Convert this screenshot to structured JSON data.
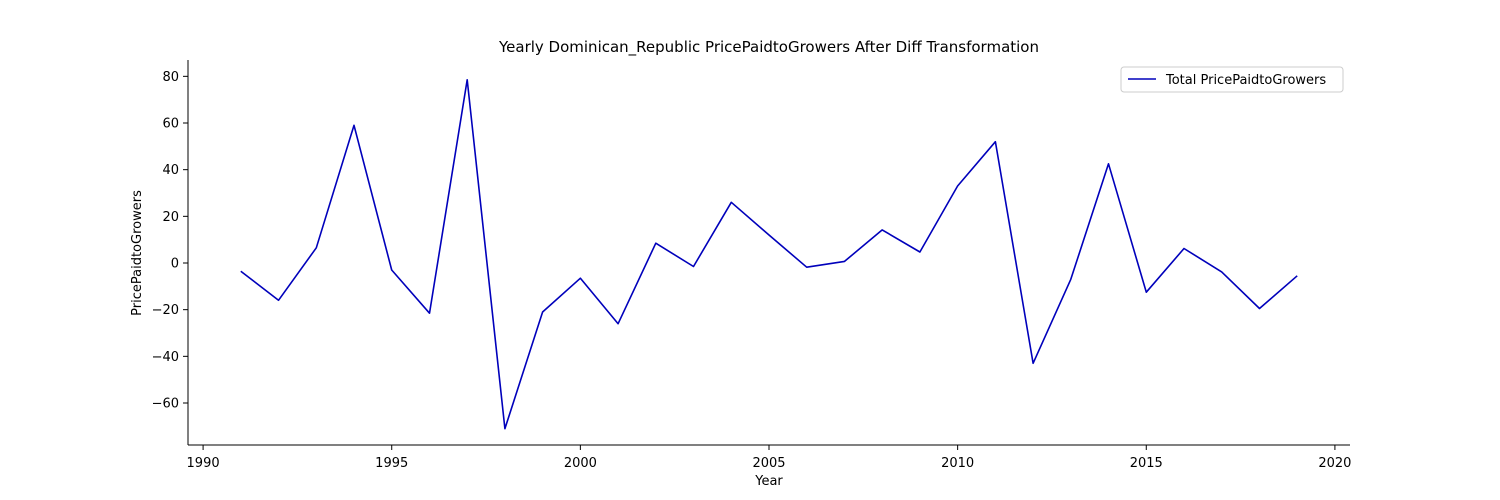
{
  "chart_data": {
    "type": "line",
    "title": "Yearly Dominican_Republic PricePaidtoGrowers After Diff Transformation",
    "xlabel": "Year",
    "ylabel": "PricePaidtoGrowers",
    "xlim": [
      1989.6,
      2020.4
    ],
    "ylim": [
      -78,
      87
    ],
    "x_ticks": [
      1990,
      1995,
      2000,
      2005,
      2010,
      2015,
      2020
    ],
    "y_ticks": [
      -60,
      -40,
      -20,
      0,
      20,
      40,
      60,
      80
    ],
    "x_tick_labels": [
      "1990",
      "1995",
      "2000",
      "2005",
      "2010",
      "2015",
      "2020"
    ],
    "y_tick_labels": [
      "−60",
      "−40",
      "−20",
      "0",
      "20",
      "40",
      "60",
      "80"
    ],
    "grid": false,
    "legend_position": "top-right",
    "series": [
      {
        "name": "Total PricePaidtoGrowers",
        "color": "#0000bb",
        "x": [
          1991,
          1992,
          1993,
          1994,
          1995,
          1996,
          1997,
          1998,
          1999,
          2000,
          2001,
          2002,
          2003,
          2004,
          2005,
          2006,
          2007,
          2008,
          2009,
          2010,
          2011,
          2012,
          2013,
          2014,
          2015,
          2016,
          2017,
          2018,
          2019
        ],
        "y": [
          -3.5,
          -16,
          6.5,
          59,
          -3,
          -21.5,
          78.5,
          -71,
          -21,
          -6.5,
          -26,
          8.5,
          -1.5,
          26,
          12,
          -1.8,
          0.7,
          14.2,
          4.7,
          33,
          52,
          -43,
          -7,
          42.5,
          -12.5,
          6.2,
          -3.8,
          -19.5,
          -5.5
        ]
      }
    ]
  }
}
